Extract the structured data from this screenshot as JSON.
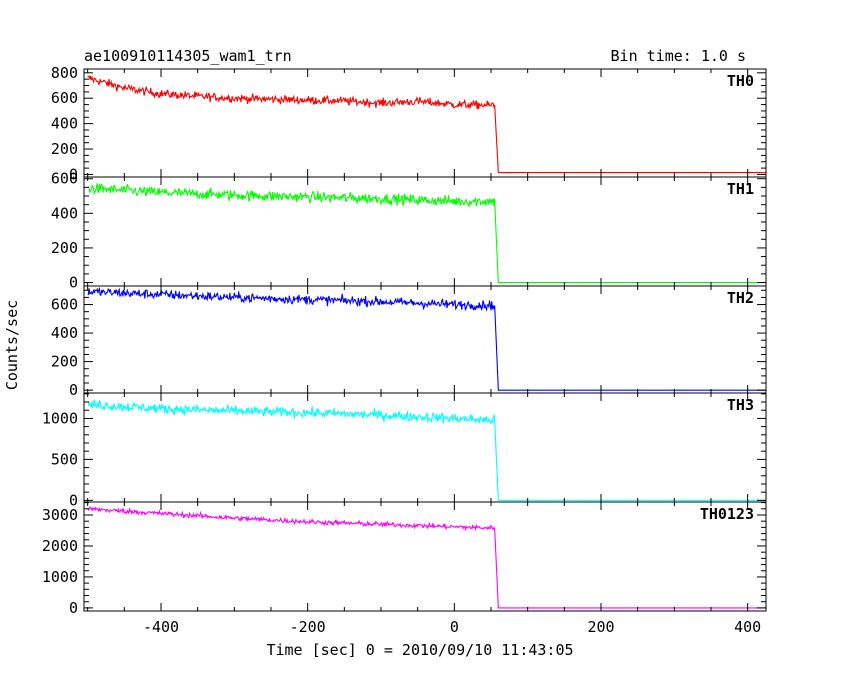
{
  "header": {
    "title": "ae100910114305_wam1_trn",
    "bin_time": "Bin time: 1.0 s"
  },
  "axes": {
    "xlabel": "Time [sec] 0 = 2010/09/10 11:43:05",
    "ylabel": "Counts/sec",
    "x_ticks": [
      "-400",
      "-200",
      "0",
      "200",
      "400"
    ]
  },
  "chart_data": {
    "type": "line",
    "title": "ae100910114305_wam1_trn",
    "xlabel": "Time [sec] 0 = 2010/09/10 11:43:05",
    "ylabel": "Counts/sec",
    "xlim": [
      -505,
      425
    ],
    "x_major_step": 200,
    "x_minor_step": 50,
    "drop_time": 55,
    "series": [
      {
        "name": "TH0",
        "color": "#ff0000",
        "ylim": [
          -20,
          830
        ],
        "y_ticks": [
          0,
          200,
          400,
          600,
          800
        ],
        "y_minor_step": 50,
        "x": [
          -500,
          -450,
          -400,
          -350,
          -300,
          -250,
          -200,
          -150,
          -100,
          -50,
          0,
          50,
          55,
          60,
          425
        ],
        "values": [
          760,
          680,
          635,
          615,
          600,
          592,
          585,
          578,
          562,
          575,
          550,
          545,
          545,
          15,
          15
        ],
        "noise": 30
      },
      {
        "name": "TH1",
        "color": "#00ff00",
        "ylim": [
          -20,
          610
        ],
        "y_ticks": [
          0,
          200,
          400,
          600
        ],
        "y_minor_step": 50,
        "x": [
          -500,
          -400,
          -300,
          -200,
          -100,
          0,
          50,
          55,
          60,
          425
        ],
        "values": [
          545,
          520,
          505,
          495,
          485,
          470,
          470,
          470,
          0,
          0
        ],
        "noise": 28
      },
      {
        "name": "TH2",
        "color": "#0000ff",
        "ylim": [
          -20,
          730
        ],
        "y_ticks": [
          0,
          200,
          400,
          600
        ],
        "y_minor_step": 50,
        "x": [
          -500,
          -400,
          -300,
          -200,
          -100,
          0,
          50,
          55,
          60,
          425
        ],
        "values": [
          690,
          670,
          650,
          635,
          620,
          600,
          595,
          595,
          0,
          0
        ],
        "noise": 30
      },
      {
        "name": "TH3",
        "color": "#00ffff",
        "ylim": [
          -20,
          1310
        ],
        "y_ticks": [
          0,
          500,
          1000
        ],
        "y_minor_step": 100,
        "x": [
          -500,
          -400,
          -300,
          -200,
          -100,
          0,
          50,
          55,
          60,
          425
        ],
        "values": [
          1170,
          1120,
          1090,
          1070,
          1040,
          1000,
          980,
          980,
          0,
          0
        ],
        "noise": 55
      },
      {
        "name": "TH0123",
        "color": "#ff00ff",
        "ylim": [
          -100,
          3420
        ],
        "y_ticks": [
          0,
          1000,
          2000,
          3000
        ],
        "y_minor_step": 200,
        "x": [
          -500,
          -400,
          -300,
          -200,
          -100,
          0,
          50,
          55,
          60,
          425
        ],
        "values": [
          3200,
          3050,
          2900,
          2780,
          2700,
          2620,
          2580,
          2580,
          0,
          0
        ],
        "noise": 70
      }
    ]
  }
}
